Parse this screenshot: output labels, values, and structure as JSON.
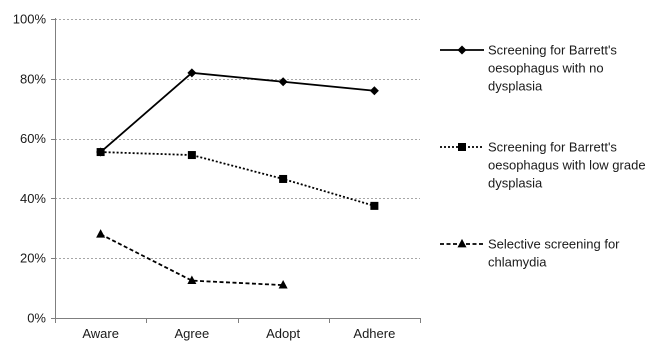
{
  "chart_data": {
    "type": "line",
    "categories": [
      "Aware",
      "Agree",
      "Adopt",
      "Adhere"
    ],
    "ylim": [
      0,
      100
    ],
    "yticks": [
      0,
      20,
      40,
      60,
      80,
      100
    ],
    "ytick_labels": [
      "0%",
      "20%",
      "40%",
      "60%",
      "80%",
      "100%"
    ],
    "grid": true,
    "legend_position": "right",
    "title": "",
    "xlabel": "",
    "ylabel": "",
    "series": [
      {
        "name": "Screening for Barrett's oesophagus with no dysplasia",
        "legend_lines": [
          "Screening for Barrett's",
          "oesophagus with no",
          "dysplasia"
        ],
        "values": [
          55.5,
          82,
          79,
          76
        ],
        "line_style": "solid",
        "marker": "diamond",
        "color": "#000000"
      },
      {
        "name": "Screening for Barrett's oesophagus with low grade dysplasia",
        "legend_lines": [
          "Screening for Barrett's",
          "oesophagus with low grade",
          "dysplasia"
        ],
        "values": [
          55.5,
          54.5,
          46.5,
          37.5
        ],
        "line_style": "dotted",
        "marker": "square",
        "color": "#000000"
      },
      {
        "name": "Selective screening for chlamydia",
        "legend_lines": [
          "Selective screening for",
          "chlamydia"
        ],
        "values": [
          28,
          12.5,
          11,
          null
        ],
        "line_style": "dashed",
        "marker": "triangle",
        "color": "#000000"
      }
    ]
  }
}
